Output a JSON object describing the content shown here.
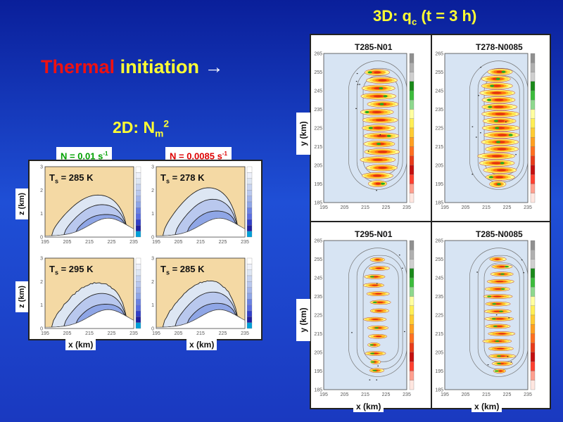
{
  "title": {
    "part1": "Thermal",
    "part2": "initiation",
    "arrow": "→"
  },
  "subtitle_2d": {
    "text": "2D: N",
    "sub": "m",
    "sup": "2"
  },
  "subtitle_3d": {
    "text": "3D: q",
    "sub": "c",
    "rest": " (t = 3 h)"
  },
  "n_labels": [
    {
      "text": "N = 0.01 s",
      "sup": "-1",
      "color": "#00a000"
    },
    {
      "text": "N = 0.0085 s",
      "sup": "-1",
      "color": "#dd0000"
    }
  ],
  "colors": {
    "accent_yellow": "#ffff33",
    "accent_red": "#ee1111",
    "background": "#1f4fd6"
  },
  "chart_data": [
    {
      "type": "contour",
      "title": "T_s = 285 K",
      "ts_label": {
        "prefix": "T",
        "sub": "s",
        "value": " = 285 K"
      },
      "xlabel": "x (km)",
      "ylabel": "z (km)",
      "xlim": [
        195,
        235
      ],
      "ylim": [
        0,
        3
      ],
      "x_ticks": [
        "195",
        "205",
        "215",
        "225",
        "235"
      ],
      "y_ticks": [
        "0",
        "1",
        "2",
        "3"
      ],
      "cloud_top_km": 2.1,
      "levels": 3
    },
    {
      "type": "contour",
      "title": "T_s = 278 K",
      "ts_label": {
        "prefix": "T",
        "sub": "s",
        "value": " = 278 K"
      },
      "xlabel": "x (km)",
      "ylabel": "z (km)",
      "xlim": [
        195,
        235
      ],
      "ylim": [
        0,
        3
      ],
      "x_ticks": [
        "195",
        "205",
        "215",
        "225",
        "235"
      ],
      "y_ticks": [
        "0",
        "1",
        "2",
        "3"
      ],
      "cloud_top_km": 2.5,
      "levels": 3
    },
    {
      "type": "contour",
      "title": "T_s = 295 K",
      "ts_label": {
        "prefix": "T",
        "sub": "s",
        "value": " = 295 K"
      },
      "xlabel": "x (km)",
      "ylabel": "z (km)",
      "xlim": [
        195,
        235
      ],
      "ylim": [
        0,
        3
      ],
      "x_ticks": [
        "195",
        "205",
        "215",
        "225",
        "235"
      ],
      "y_ticks": [
        "0",
        "1",
        "2",
        "3"
      ],
      "cloud_top_km": 2.3,
      "levels": 4
    },
    {
      "type": "contour",
      "title": "T_s = 285 K",
      "ts_label": {
        "prefix": "T",
        "sub": "s",
        "value": " = 285 K"
      },
      "xlabel": "x (km)",
      "ylabel": "z (km)",
      "xlim": [
        195,
        235
      ],
      "ylim": [
        0,
        3
      ],
      "x_ticks": [
        "195",
        "205",
        "215",
        "225",
        "235"
      ],
      "y_ticks": [
        "0",
        "1",
        "2",
        "3"
      ],
      "cloud_top_km": 2.4,
      "levels": 4
    },
    {
      "type": "heatmap",
      "title": "T285-N01",
      "xlabel": "x (km)",
      "ylabel": "y (km)",
      "xlim": [
        195,
        235
      ],
      "ylim": [
        185,
        265
      ],
      "x_ticks": [
        "195",
        "205",
        "215",
        "225",
        "235"
      ],
      "y_ticks": [
        "185",
        "195",
        "205",
        "215",
        "225",
        "235",
        "245",
        "255",
        "265"
      ],
      "bands": 15,
      "x_range_km": [
        213,
        231
      ],
      "band_lengths_km": [
        9,
        15,
        15,
        17,
        17,
        15,
        17,
        16,
        17,
        16,
        15,
        17,
        16,
        15,
        12
      ]
    },
    {
      "type": "heatmap",
      "title": "T278-N0085",
      "xlabel": "x (km)",
      "ylabel": "y (km)",
      "xlim": [
        195,
        235
      ],
      "ylim": [
        185,
        265
      ],
      "x_ticks": [
        "195",
        "205",
        "215",
        "225",
        "235"
      ],
      "y_ticks": [
        "185",
        "195",
        "205",
        "215",
        "225",
        "235",
        "245",
        "255",
        "265"
      ],
      "bands": 17,
      "x_range_km": [
        210,
        232
      ],
      "band_lengths_km": [
        8,
        14,
        16,
        17,
        18,
        16,
        18,
        17,
        18,
        16,
        18,
        17,
        16,
        17,
        15,
        14,
        12
      ]
    },
    {
      "type": "heatmap",
      "title": "T295-N01",
      "xlabel": "x (km)",
      "ylabel": "y (km)",
      "xlim": [
        195,
        235
      ],
      "ylim": [
        185,
        265
      ],
      "x_ticks": [
        "195",
        "205",
        "215",
        "225",
        "235"
      ],
      "y_ticks": [
        "185",
        "195",
        "205",
        "215",
        "225",
        "235",
        "245",
        "255",
        "265"
      ],
      "bands": 14,
      "x_range_km": [
        213,
        228
      ],
      "band_lengths_km": [
        7,
        5,
        10,
        6,
        9,
        10,
        11,
        9,
        10,
        11,
        10,
        10,
        10,
        7
      ]
    },
    {
      "type": "heatmap",
      "title": "T285-N0085",
      "xlabel": "x (km)",
      "ylabel": "y (km)",
      "xlim": [
        195,
        235
      ],
      "ylim": [
        185,
        265
      ],
      "x_ticks": [
        "195",
        "205",
        "215",
        "225",
        "235"
      ],
      "y_ticks": [
        "185",
        "195",
        "205",
        "215",
        "225",
        "235",
        "245",
        "255",
        "265"
      ],
      "bands": 16,
      "x_range_km": [
        211,
        232
      ],
      "band_lengths_km": [
        6,
        10,
        13,
        12,
        14,
        13,
        12,
        14,
        13,
        12,
        14,
        12,
        13,
        11,
        10,
        8
      ]
    }
  ],
  "axis_labels": {
    "z": "z (km)",
    "x": "x (km)",
    "y": "y (km)"
  }
}
